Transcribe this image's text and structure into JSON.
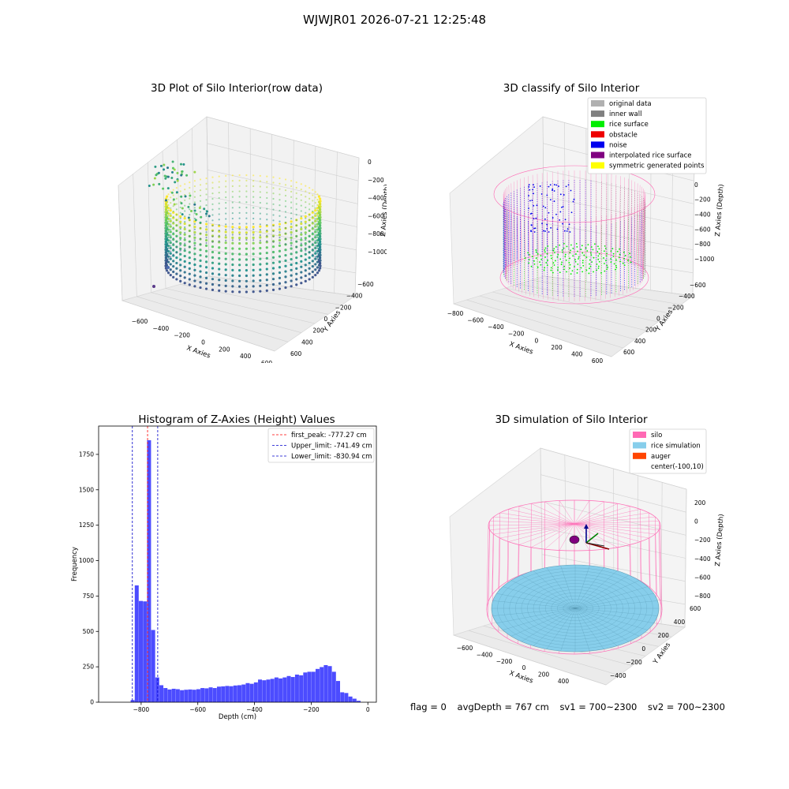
{
  "figure_title": "WJWJR01 2026-07-21 12:25:48",
  "panel1": {
    "title": "3D Plot of Silo Interior(row data)",
    "xlabel": "X Axies",
    "ylabel": "Y Axies",
    "zlabel": "Z Axies (Depth)",
    "xticks": [
      "−600",
      "−400",
      "−200",
      "0",
      "200",
      "400",
      "600"
    ],
    "yticks": [
      "−600",
      "−400",
      "−200",
      "0",
      "200",
      "400",
      "600"
    ],
    "zticks": [
      "0",
      "−200",
      "−400",
      "−600",
      "−800",
      "−1000"
    ]
  },
  "panel2": {
    "title": "3D classify of Silo Interior",
    "xlabel": "X Axies",
    "ylabel": "Y Axies",
    "zlabel": "Z Axies (Depth)",
    "xticks": [
      "−800",
      "−600",
      "−400",
      "−200",
      "0",
      "200",
      "400",
      "600"
    ],
    "yticks": [
      "−600",
      "−400",
      "−200",
      "0",
      "200",
      "400",
      "600"
    ],
    "zticks": [
      "200",
      "0",
      "−200",
      "−400",
      "−600",
      "−800",
      "−1000"
    ],
    "legend": [
      {
        "label": "original data",
        "color": "#b0b0b0"
      },
      {
        "label": "inner wall",
        "color": "#808080"
      },
      {
        "label": "rice surface",
        "color": "#00ee00"
      },
      {
        "label": "obstacle",
        "color": "#ee0000"
      },
      {
        "label": "noise",
        "color": "#0000ee"
      },
      {
        "label": "interpolated rice surface",
        "color": "#800080"
      },
      {
        "label": "symmetric generated points",
        "color": "#ffff00"
      }
    ]
  },
  "panel3": {
    "title": "Histogram of Z-Axies (Height) Values",
    "xlabel": "Depth (cm)",
    "ylabel": "Frequency",
    "legend": [
      {
        "label": "first_peak: -777.27 cm",
        "color": "#ff0000"
      },
      {
        "label": "Upper_limit: -741.49 cm",
        "color": "#0000cc"
      },
      {
        "label": "Lower_limit: -830.94 cm",
        "color": "#0000cc"
      }
    ]
  },
  "panel4": {
    "title": "3D simulation of Silo Interior",
    "xlabel": "X Axies",
    "ylabel": "Y Axies",
    "zlabel": "Z Axies (Depth)",
    "xticks": [
      "−600",
      "−400",
      "−200",
      "0",
      "200",
      "400"
    ],
    "yticks": [
      "−400",
      "−200",
      "0",
      "200",
      "400",
      "600"
    ],
    "zticks": [
      "200",
      "0",
      "−200",
      "−400",
      "−600",
      "−800"
    ],
    "legend": [
      {
        "label": "silo",
        "color": "#ff69b4"
      },
      {
        "label": "rice simulation",
        "color": "#87ceeb"
      },
      {
        "label": "auger",
        "color": "#ff4500"
      },
      {
        "label": "center(-100,10)",
        "color": "#ffffff"
      }
    ]
  },
  "footer": {
    "flag": "flag = 0",
    "avg": "avgDepth = 767 cm",
    "sv1": "sv1 = 700~2300",
    "sv2": "sv2 = 700~2300"
  },
  "chart_data": {
    "type": "bar",
    "title": "Histogram of Z-Axies (Height) Values",
    "xlabel": "Depth (cm)",
    "ylabel": "Frequency",
    "xlim": [
      -950,
      30
    ],
    "ylim": [
      0,
      1950
    ],
    "bin_width": 14.5,
    "xticks": [
      -800,
      -600,
      -400,
      -200,
      0
    ],
    "yticks": [
      0,
      250,
      500,
      750,
      1000,
      1250,
      1500,
      1750
    ],
    "bins": [
      {
        "x": -837,
        "value": 15
      },
      {
        "x": -822.5,
        "value": 825
      },
      {
        "x": -808,
        "value": 715
      },
      {
        "x": -793.5,
        "value": 712
      },
      {
        "x": -779,
        "value": 1850
      },
      {
        "x": -764.5,
        "value": 510
      },
      {
        "x": -750,
        "value": 175
      },
      {
        "x": -735.5,
        "value": 120
      },
      {
        "x": -721,
        "value": 100
      },
      {
        "x": -706.5,
        "value": 90
      },
      {
        "x": -692,
        "value": 95
      },
      {
        "x": -677.5,
        "value": 92
      },
      {
        "x": -663,
        "value": 85
      },
      {
        "x": -648.5,
        "value": 88
      },
      {
        "x": -634,
        "value": 90
      },
      {
        "x": -619.5,
        "value": 88
      },
      {
        "x": -605,
        "value": 92
      },
      {
        "x": -590.5,
        "value": 100
      },
      {
        "x": -576,
        "value": 98
      },
      {
        "x": -561.5,
        "value": 105
      },
      {
        "x": -547,
        "value": 100
      },
      {
        "x": -532.5,
        "value": 110
      },
      {
        "x": -518,
        "value": 112
      },
      {
        "x": -503.5,
        "value": 115
      },
      {
        "x": -489,
        "value": 113
      },
      {
        "x": -474.5,
        "value": 118
      },
      {
        "x": -460,
        "value": 120
      },
      {
        "x": -445.5,
        "value": 125
      },
      {
        "x": -431,
        "value": 135
      },
      {
        "x": -416.5,
        "value": 130
      },
      {
        "x": -402,
        "value": 140
      },
      {
        "x": -387.5,
        "value": 160
      },
      {
        "x": -373,
        "value": 155
      },
      {
        "x": -358.5,
        "value": 160
      },
      {
        "x": -344,
        "value": 165
      },
      {
        "x": -329.5,
        "value": 175
      },
      {
        "x": -315,
        "value": 168
      },
      {
        "x": -300.5,
        "value": 175
      },
      {
        "x": -286,
        "value": 185
      },
      {
        "x": -271.5,
        "value": 178
      },
      {
        "x": -257,
        "value": 195
      },
      {
        "x": -242.5,
        "value": 190
      },
      {
        "x": -228,
        "value": 210
      },
      {
        "x": -213.5,
        "value": 215
      },
      {
        "x": -199,
        "value": 215
      },
      {
        "x": -184.5,
        "value": 235
      },
      {
        "x": -170,
        "value": 248
      },
      {
        "x": -155.5,
        "value": 262
      },
      {
        "x": -141,
        "value": 255
      },
      {
        "x": -126.5,
        "value": 215
      },
      {
        "x": -112,
        "value": 150
      },
      {
        "x": -97.5,
        "value": 70
      },
      {
        "x": -83,
        "value": 65
      },
      {
        "x": -68.5,
        "value": 40
      },
      {
        "x": -54,
        "value": 25
      },
      {
        "x": -39.5,
        "value": 10
      }
    ],
    "vlines": [
      {
        "label": "first_peak: -777.27 cm",
        "x": -777.27,
        "color": "#ff0000"
      },
      {
        "label": "Upper_limit: -741.49 cm",
        "x": -741.49,
        "color": "#0000cc"
      },
      {
        "label": "Lower_limit: -830.94 cm",
        "x": -830.94,
        "color": "#0000cc"
      }
    ]
  }
}
